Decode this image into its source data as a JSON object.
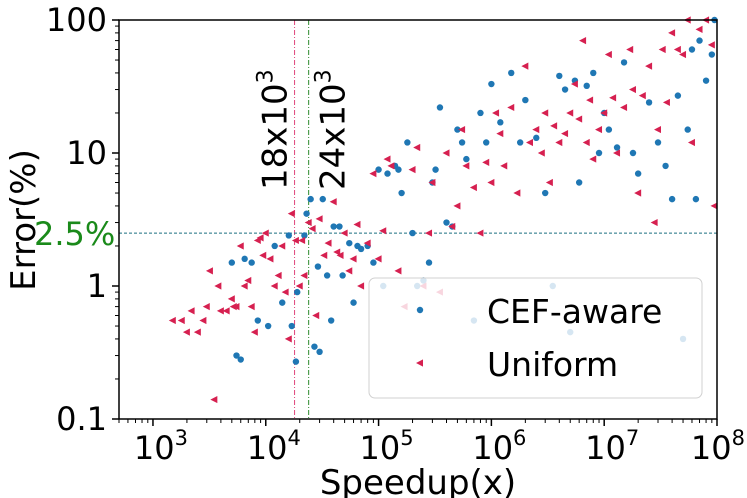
{
  "chart_data": {
    "type": "scatter",
    "xscale": "log",
    "yscale": "log",
    "xlabel": "Speedup(x)",
    "ylabel": "Error(%)",
    "xlim": [
      500,
      100000000
    ],
    "ylim": [
      0.1,
      100
    ],
    "x_ticks": [
      {
        "value": 1000,
        "base": "10",
        "exp": "3"
      },
      {
        "value": 10000,
        "base": "10",
        "exp": "4"
      },
      {
        "value": 100000,
        "base": "10",
        "exp": "5"
      },
      {
        "value": 1000000,
        "base": "10",
        "exp": "6"
      },
      {
        "value": 10000000,
        "base": "10",
        "exp": "7"
      },
      {
        "value": 100000000,
        "base": "10",
        "exp": "8"
      }
    ],
    "y_ticks": [
      {
        "value": 0.1,
        "label": "0.1"
      },
      {
        "value": 1,
        "label": "1"
      },
      {
        "value": 10,
        "label": "10"
      },
      {
        "value": 100,
        "label": "100"
      }
    ],
    "reference_lines": [
      {
        "orientation": "vertical",
        "x": 18000,
        "label_base": "18x10",
        "label_exp": "3",
        "color": "#e0457b"
      },
      {
        "orientation": "vertical",
        "x": 24000,
        "label_base": "24x10",
        "label_exp": "3",
        "color": "#2e8b2e"
      },
      {
        "orientation": "horizontal",
        "y": 2.5,
        "label": "2.5%",
        "color": "#1b6f80",
        "label_color": "#1a8a1a"
      }
    ],
    "legend": {
      "position": "lower-right",
      "entries": [
        "CEF-aware",
        "Uniform"
      ]
    },
    "series": [
      {
        "name": "CEF-aware",
        "marker": "circle",
        "color": "#1f77b4",
        "points": [
          [
            5000,
            1.5
          ],
          [
            5500,
            0.3
          ],
          [
            6000,
            0.28
          ],
          [
            6500,
            1.6
          ],
          [
            7500,
            1.5
          ],
          [
            8500,
            0.55
          ],
          [
            10500,
            0.5
          ],
          [
            12000,
            2.0
          ],
          [
            14000,
            0.75
          ],
          [
            16000,
            2.4
          ],
          [
            17000,
            0.5
          ],
          [
            18500,
            0.27
          ],
          [
            19000,
            0.9
          ],
          [
            22000,
            2.4
          ],
          [
            23000,
            3.5
          ],
          [
            25000,
            4.5
          ],
          [
            27000,
            0.35
          ],
          [
            29000,
            1.4
          ],
          [
            30000,
            0.32
          ],
          [
            32000,
            4.5
          ],
          [
            35000,
            1.2
          ],
          [
            38000,
            0.55
          ],
          [
            40000,
            2.8
          ],
          [
            45000,
            2.8
          ],
          [
            48000,
            1.2
          ],
          [
            55000,
            2.1
          ],
          [
            60000,
            0.75
          ],
          [
            65000,
            2.0
          ],
          [
            70000,
            1.9
          ],
          [
            80000,
            2.0
          ],
          [
            90000,
            1.5
          ],
          [
            100000,
            7.5
          ],
          [
            110000,
            1.0
          ],
          [
            120000,
            7.0
          ],
          [
            140000,
            8.0
          ],
          [
            150000,
            7.5
          ],
          [
            160000,
            5.0
          ],
          [
            180000,
            12.0
          ],
          [
            200000,
            2.5
          ],
          [
            220000,
            1.0
          ],
          [
            250000,
            1.1
          ],
          [
            280000,
            1.5
          ],
          [
            300000,
            6.0
          ],
          [
            320000,
            7.5
          ],
          [
            350000,
            22.0
          ],
          [
            400000,
            3.0
          ],
          [
            450000,
            2.8
          ],
          [
            500000,
            15.0
          ],
          [
            550000,
            12.0
          ],
          [
            600000,
            9.0
          ],
          [
            700000,
            0.55
          ],
          [
            800000,
            20.0
          ],
          [
            900000,
            12.0
          ],
          [
            1000000,
            33.0
          ],
          [
            1200000,
            17.0
          ],
          [
            1500000,
            40.0
          ],
          [
            1800000,
            12.0
          ],
          [
            2000000,
            25.0
          ],
          [
            2500000,
            13.0
          ],
          [
            3000000,
            5.0
          ],
          [
            3500000,
            1.0
          ],
          [
            4000000,
            38.0
          ],
          [
            4500000,
            30.0
          ],
          [
            5000000,
            0.45
          ],
          [
            5500000,
            35.0
          ],
          [
            6000000,
            6.0
          ],
          [
            7000000,
            32.0
          ],
          [
            8000000,
            40.0
          ],
          [
            9000000,
            10.0
          ],
          [
            10000000,
            20.0
          ],
          [
            11000000,
            15.0
          ],
          [
            13000000,
            11.0
          ],
          [
            15000000,
            48.0
          ],
          [
            18000000,
            10.0
          ],
          [
            20000000,
            7.0
          ],
          [
            25000000,
            24.0
          ],
          [
            30000000,
            12.0
          ],
          [
            35000000,
            8.0
          ],
          [
            40000000,
            4.5
          ],
          [
            45000000,
            27.0
          ],
          [
            50000000,
            0.4
          ],
          [
            55000000,
            15.0
          ],
          [
            60000000,
            60.0
          ],
          [
            65000000,
            4.5
          ],
          [
            70000000,
            70.0
          ],
          [
            80000000,
            35.0
          ],
          [
            90000000,
            55.0
          ],
          [
            95000000,
            100.0
          ]
        ]
      },
      {
        "name": "Uniform",
        "marker": "triangle-left",
        "color": "#d62050",
        "points": [
          [
            1500,
            0.55
          ],
          [
            1800,
            0.55
          ],
          [
            2000,
            0.45
          ],
          [
            2200,
            0.65
          ],
          [
            2500,
            0.45
          ],
          [
            2800,
            0.55
          ],
          [
            3000,
            0.7
          ],
          [
            3200,
            1.3
          ],
          [
            3500,
            0.14
          ],
          [
            3800,
            1.0
          ],
          [
            4000,
            0.65
          ],
          [
            4500,
            0.65
          ],
          [
            5000,
            0.8
          ],
          [
            5200,
            0.7
          ],
          [
            5500,
            0.7
          ],
          [
            6000,
            2.0
          ],
          [
            6500,
            1.0
          ],
          [
            7000,
            1.1
          ],
          [
            7500,
            0.7
          ],
          [
            8000,
            0.45
          ],
          [
            8500,
            2.2
          ],
          [
            9000,
            2.3
          ],
          [
            9500,
            1.7
          ],
          [
            10000,
            2.5
          ],
          [
            11000,
            1.6
          ],
          [
            12000,
            1.0
          ],
          [
            13000,
            1.2
          ],
          [
            14000,
            2.0
          ],
          [
            15000,
            0.9
          ],
          [
            16000,
            0.4
          ],
          [
            17000,
            3.5
          ],
          [
            18500,
            2.2
          ],
          [
            20000,
            1.0
          ],
          [
            21000,
            2.2
          ],
          [
            22000,
            1.2
          ],
          [
            24000,
            3.0
          ],
          [
            26000,
            2.7
          ],
          [
            28000,
            0.6
          ],
          [
            30000,
            3.2
          ],
          [
            33000,
            1.7
          ],
          [
            36000,
            2.1
          ],
          [
            40000,
            4.3
          ],
          [
            43000,
            1.8
          ],
          [
            46000,
            1.7
          ],
          [
            50000,
            2.5
          ],
          [
            55000,
            1.3
          ],
          [
            60000,
            1.6
          ],
          [
            65000,
            2.9
          ],
          [
            70000,
            1.0
          ],
          [
            80000,
            2.1
          ],
          [
            90000,
            7.0
          ],
          [
            100000,
            1.6
          ],
          [
            110000,
            2.6
          ],
          [
            120000,
            9.0
          ],
          [
            130000,
            8.0
          ],
          [
            150000,
            1.3
          ],
          [
            170000,
            0.7
          ],
          [
            200000,
            7.5
          ],
          [
            220000,
            11.0
          ],
          [
            250000,
            1.0
          ],
          [
            280000,
            2.5
          ],
          [
            300000,
            6.0
          ],
          [
            350000,
            0.9
          ],
          [
            400000,
            10.0
          ],
          [
            450000,
            2.8
          ],
          [
            500000,
            4.0
          ],
          [
            550000,
            15.0
          ],
          [
            600000,
            8.0
          ],
          [
            700000,
            5.5
          ],
          [
            800000,
            2.5
          ],
          [
            900000,
            8.5
          ],
          [
            1000000,
            6.0
          ],
          [
            1100000,
            20.0
          ],
          [
            1200000,
            14.0
          ],
          [
            1300000,
            8.0
          ],
          [
            1500000,
            22.0
          ],
          [
            1700000,
            5.0
          ],
          [
            2000000,
            45.0
          ],
          [
            2200000,
            12.0
          ],
          [
            2500000,
            15.0
          ],
          [
            2800000,
            10.0
          ],
          [
            3000000,
            20.0
          ],
          [
            3300000,
            6.0
          ],
          [
            3600000,
            16.0
          ],
          [
            4000000,
            12.0
          ],
          [
            4500000,
            14.0
          ],
          [
            5000000,
            20.0
          ],
          [
            5500000,
            33.0
          ],
          [
            6000000,
            18.0
          ],
          [
            6500000,
            70.0
          ],
          [
            7000000,
            12.0
          ],
          [
            7500000,
            25.0
          ],
          [
            8000000,
            9.0
          ],
          [
            9000000,
            15.0
          ],
          [
            10000000,
            20.0
          ],
          [
            11000000,
            55.0
          ],
          [
            12000000,
            26.0
          ],
          [
            13000000,
            10.0
          ],
          [
            15000000,
            22.0
          ],
          [
            17000000,
            60.0
          ],
          [
            18000000,
            30.0
          ],
          [
            20000000,
            5.0
          ],
          [
            22000000,
            27.0
          ],
          [
            25000000,
            45.0
          ],
          [
            28000000,
            3.0
          ],
          [
            30000000,
            15.0
          ],
          [
            33000000,
            60.0
          ],
          [
            36000000,
            24.0
          ],
          [
            40000000,
            80.0
          ],
          [
            45000000,
            60.0
          ],
          [
            50000000,
            55.0
          ],
          [
            55000000,
            100.0
          ],
          [
            60000000,
            12.0
          ],
          [
            70000000,
            85.0
          ],
          [
            80000000,
            100.0
          ],
          [
            90000000,
            65.0
          ],
          [
            95000000,
            4.0
          ]
        ]
      }
    ]
  }
}
